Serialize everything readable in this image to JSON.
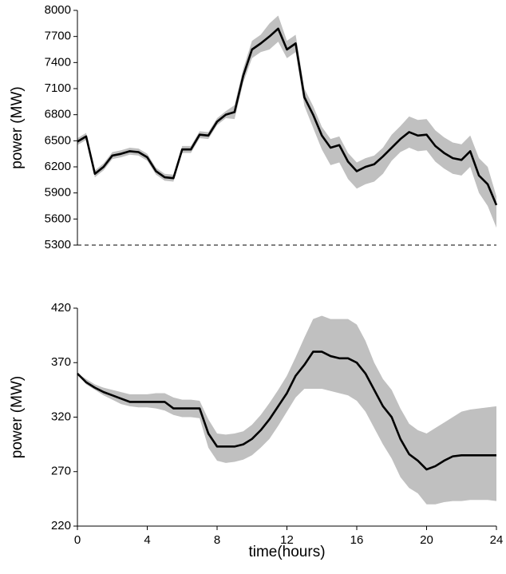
{
  "chart_data": [
    {
      "type": "line",
      "ylabel": "power (MW)",
      "xlim": [
        0,
        24
      ],
      "ylim": [
        5300,
        8000
      ],
      "yticks": [
        5300,
        5600,
        5900,
        6200,
        6500,
        6800,
        7100,
        7400,
        7700,
        8000
      ],
      "x": [
        0,
        0.5,
        1,
        1.5,
        2,
        2.5,
        3,
        3.5,
        4,
        4.5,
        5,
        5.5,
        6,
        6.5,
        7,
        7.5,
        8,
        8.5,
        9,
        9.5,
        10,
        10.5,
        11,
        11.5,
        12,
        12.5,
        13,
        13.5,
        14,
        14.5,
        15,
        15.5,
        16,
        16.5,
        17,
        17.5,
        18,
        18.5,
        19,
        19.5,
        20,
        20.5,
        21,
        21.5,
        22,
        22.5,
        23,
        23.5,
        24
      ],
      "series": [
        {
          "color": "#000000",
          "values": [
            6490,
            6550,
            6120,
            6200,
            6330,
            6350,
            6380,
            6370,
            6310,
            6150,
            6080,
            6070,
            6400,
            6400,
            6570,
            6560,
            6720,
            6800,
            6830,
            7250,
            7550,
            7620,
            7700,
            7790,
            7550,
            7620,
            7000,
            6800,
            6560,
            6420,
            6450,
            6260,
            6150,
            6200,
            6230,
            6320,
            6420,
            6520,
            6600,
            6560,
            6570,
            6440,
            6360,
            6300,
            6280,
            6380,
            6100,
            6000,
            5760
          ]
        }
      ],
      "band_color": "#c0c0c0",
      "band_upper": [
        6530,
        6590,
        6160,
        6240,
        6370,
        6390,
        6420,
        6410,
        6350,
        6190,
        6120,
        6110,
        6440,
        6440,
        6610,
        6600,
        6760,
        6840,
        6910,
        7330,
        7650,
        7720,
        7850,
        7940,
        7650,
        7720,
        7100,
        6900,
        6660,
        6520,
        6550,
        6360,
        6250,
        6300,
        6330,
        6420,
        6570,
        6670,
        6780,
        6740,
        6750,
        6620,
        6540,
        6480,
        6460,
        6560,
        6300,
        6200,
        5860
      ],
      "band_lower": [
        6450,
        6510,
        6080,
        6160,
        6290,
        6310,
        6340,
        6330,
        6270,
        6110,
        6040,
        6030,
        6360,
        6360,
        6530,
        6520,
        6680,
        6760,
        6750,
        7170,
        7450,
        7520,
        7550,
        7640,
        7450,
        7520,
        6900,
        6650,
        6400,
        6220,
        6250,
        6060,
        5950,
        6000,
        6030,
        6120,
        6270,
        6370,
        6420,
        6380,
        6390,
        6260,
        6180,
        6120,
        6100,
        6200,
        5900,
        5750,
        5500
      ]
    },
    {
      "type": "line",
      "ylabel": "power (MW)",
      "xlabel": "time(hours)",
      "xlim": [
        0,
        24
      ],
      "ylim": [
        220,
        420
      ],
      "yticks": [
        220,
        270,
        320,
        370,
        420
      ],
      "xticks": [
        0,
        4,
        8,
        12,
        16,
        20,
        24
      ],
      "x": [
        0,
        0.5,
        1,
        1.5,
        2,
        2.5,
        3,
        3.5,
        4,
        4.5,
        5,
        5.5,
        6,
        6.5,
        7,
        7.5,
        8,
        8.5,
        9,
        9.5,
        10,
        10.5,
        11,
        11.5,
        12,
        12.5,
        13,
        13.5,
        14,
        14.5,
        15,
        15.5,
        16,
        16.5,
        17,
        17.5,
        18,
        18.5,
        19,
        19.5,
        20,
        20.5,
        21,
        21.5,
        22,
        22.5,
        23,
        23.5,
        24
      ],
      "series": [
        {
          "color": "#000000",
          "values": [
            360,
            352,
            347,
            343,
            340,
            337,
            334,
            334,
            334,
            334,
            334,
            328,
            328,
            328,
            328,
            305,
            293,
            293,
            293,
            295,
            300,
            308,
            318,
            330,
            342,
            358,
            368,
            380,
            380,
            376,
            374,
            374,
            370,
            360,
            345,
            330,
            320,
            300,
            286,
            280,
            272,
            275,
            280,
            284,
            285,
            285,
            285,
            285,
            285
          ]
        }
      ],
      "band_color": "#c0c0c0",
      "band_upper": [
        360,
        355,
        350,
        347,
        345,
        343,
        341,
        341,
        341,
        342,
        342,
        338,
        336,
        336,
        335,
        318,
        305,
        304,
        305,
        307,
        313,
        322,
        333,
        345,
        358,
        375,
        393,
        410,
        413,
        410,
        410,
        410,
        405,
        390,
        370,
        355,
        345,
        328,
        314,
        308,
        305,
        310,
        315,
        320,
        325,
        327,
        328,
        329,
        330
      ],
      "band_lower": [
        360,
        350,
        345,
        340,
        336,
        332,
        330,
        329,
        329,
        328,
        326,
        322,
        320,
        320,
        319,
        292,
        280,
        278,
        279,
        281,
        285,
        292,
        300,
        312,
        325,
        338,
        346,
        346,
        346,
        344,
        342,
        340,
        335,
        325,
        310,
        295,
        282,
        265,
        255,
        250,
        240,
        240,
        242,
        243,
        243,
        244,
        244,
        244,
        243
      ]
    }
  ]
}
